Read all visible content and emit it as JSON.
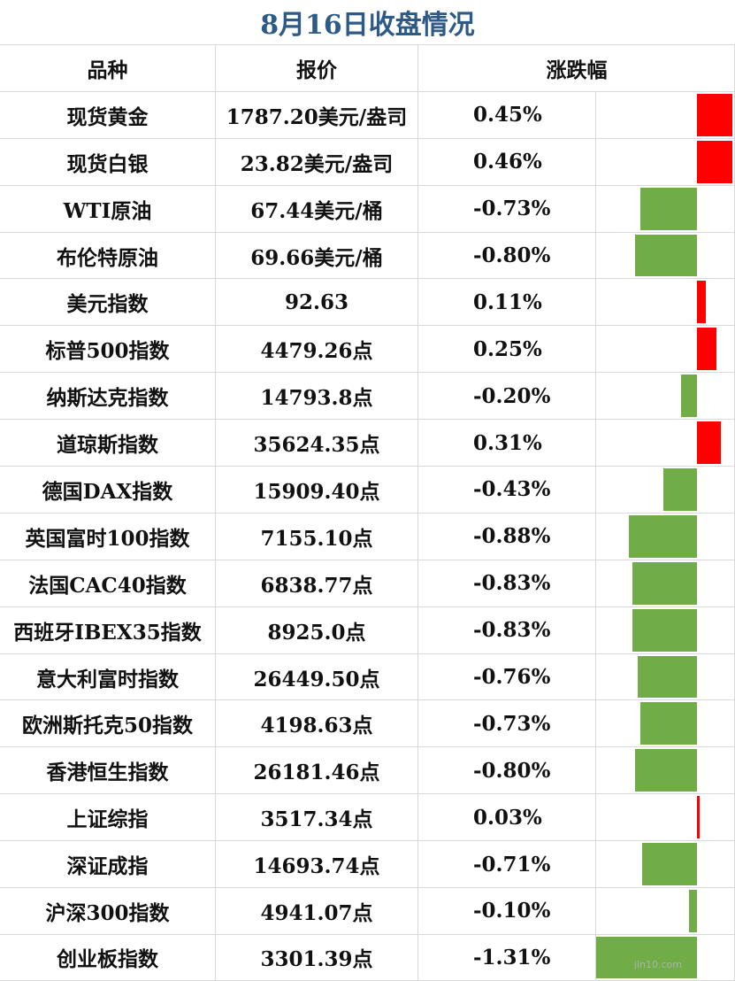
{
  "title": "8月16日收盘情况",
  "headers": {
    "name": "品种",
    "price": "报价",
    "change": "涨跌幅"
  },
  "colors": {
    "title": "#2e5a88",
    "up": "#ff0000",
    "down": "#70ad47"
  },
  "watermark": "jin10.com",
  "chart_data": {
    "type": "table",
    "rows": [
      {
        "name": "现货黄金",
        "price": "1787.20美元/盎司",
        "change_label": "0.45%",
        "change": 0.45
      },
      {
        "name": "现货白银",
        "price": "23.82美元/盎司",
        "change_label": "0.46%",
        "change": 0.46
      },
      {
        "name": "WTI原油",
        "price": "67.44美元/桶",
        "change_label": "-0.73%",
        "change": -0.73
      },
      {
        "name": "布伦特原油",
        "price": "69.66美元/桶",
        "change_label": "-0.80%",
        "change": -0.8
      },
      {
        "name": "美元指数",
        "price": "92.63",
        "change_label": "0.11%",
        "change": 0.11
      },
      {
        "name": "标普500指数",
        "price": "4479.26点",
        "change_label": "0.25%",
        "change": 0.25
      },
      {
        "name": "纳斯达克指数",
        "price": "14793.8点",
        "change_label": "-0.20%",
        "change": -0.2
      },
      {
        "name": "道琼斯指数",
        "price": "35624.35点",
        "change_label": "0.31%",
        "change": 0.31
      },
      {
        "name": "德国DAX指数",
        "price": "15909.40点",
        "change_label": "-0.43%",
        "change": -0.43
      },
      {
        "name": "英国富时100指数",
        "price": "7155.10点",
        "change_label": "-0.88%",
        "change": -0.88
      },
      {
        "name": "法国CAC40指数",
        "price": "6838.77点",
        "change_label": "-0.83%",
        "change": -0.83
      },
      {
        "name": "西班牙IBEX35指数",
        "price": "8925.0点",
        "change_label": "-0.83%",
        "change": -0.83
      },
      {
        "name": "意大利富时指数",
        "price": "26449.50点",
        "change_label": "-0.76%",
        "change": -0.76
      },
      {
        "name": "欧洲斯托克50指数",
        "price": "4198.63点",
        "change_label": "-0.73%",
        "change": -0.73
      },
      {
        "name": "香港恒生指数",
        "price": "26181.46点",
        "change_label": "-0.80%",
        "change": -0.8
      },
      {
        "name": "上证综指",
        "price": "3517.34点",
        "change_label": "0.03%",
        "change": 0.03
      },
      {
        "name": "深证成指",
        "price": "14693.74点",
        "change_label": "-0.71%",
        "change": -0.71
      },
      {
        "name": "沪深300指数",
        "price": "4941.07点",
        "change_label": "-0.10%",
        "change": -0.1
      },
      {
        "name": "创业板指数",
        "price": "3301.39点",
        "change_label": "-1.31%",
        "change": -1.31
      }
    ]
  }
}
